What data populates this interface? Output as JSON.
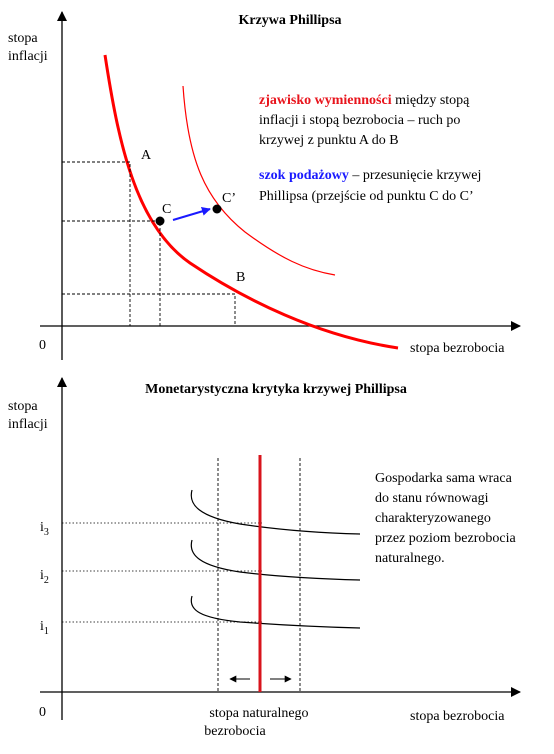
{
  "top": {
    "title": "Krzywa Phillipsa",
    "ylabel": [
      "stopa",
      "inflacji"
    ],
    "xlabel": "stopa bezrobocia",
    "origin": "0",
    "points": [
      "A",
      "B",
      "C",
      "C’"
    ],
    "note1": {
      "highlight": "zjawisko wymienności",
      "lines": [
        " między stopą",
        "inflacji i stopą bezrobocia – ruch po",
        "krzywej z punktu A do B"
      ]
    },
    "note2": {
      "highlight": "szok podażowy",
      "lines": [
        " – przesunięcie krzywej",
        "Phillipsa (przejście od punktu C do C’"
      ]
    }
  },
  "bottom": {
    "title": "Monetarystyczna krytyka krzywej Phillipsa",
    "ylabel": [
      "stopa",
      "inflacji"
    ],
    "xlabel": "stopa bezrobocia",
    "origin": "0",
    "levels": [
      {
        "base": "i",
        "sub": "3"
      },
      {
        "base": "i",
        "sub": "2"
      },
      {
        "base": "i",
        "sub": "1"
      }
    ],
    "natural_label": [
      "stopa naturalnego",
      "bezrobocia"
    ],
    "note": [
      "Gospodarka sama wraca",
      "do stanu równowagi",
      "charakteryzowanego",
      "przez poziom bezrobocia",
      "naturalnego."
    ]
  },
  "colors": {
    "curve_red": "#ff0000",
    "line_red": "#d8141c",
    "highlight_red": "#e8141c",
    "highlight_blue": "#1a1aff",
    "arrow_blue": "#1a1aff"
  }
}
